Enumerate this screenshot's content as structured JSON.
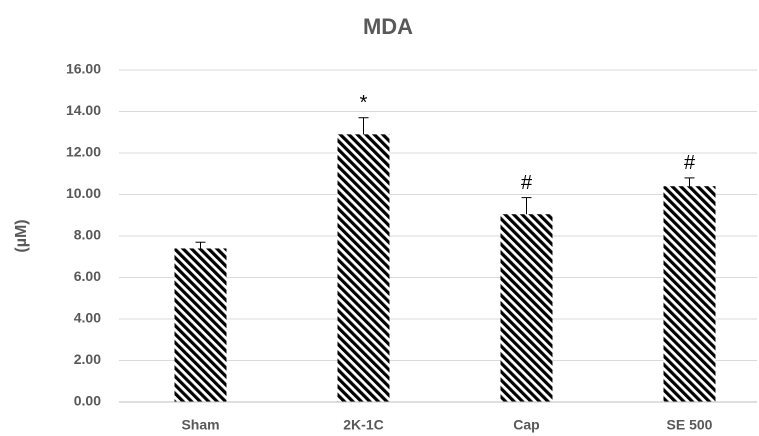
{
  "chart_data": {
    "type": "bar",
    "title": "MDA",
    "y_label": "(µM)",
    "categories": [
      "Sham",
      "2K-1C",
      "Cap",
      "SE 500"
    ],
    "values": [
      7.4,
      12.9,
      9.05,
      10.4
    ],
    "errors": [
      0.3,
      0.8,
      0.8,
      0.4
    ],
    "annotations": [
      null,
      "*",
      "#",
      "#"
    ],
    "color": "#000000",
    "ylim": [
      0,
      16
    ],
    "yticks": [
      {
        "value": 0,
        "label": "0.00"
      },
      {
        "value": 2,
        "label": "2.00"
      },
      {
        "value": 4,
        "label": "4.00"
      },
      {
        "value": 6,
        "label": "6.00"
      },
      {
        "value": 8,
        "label": "8.00"
      },
      {
        "value": 10,
        "label": "10.00"
      },
      {
        "value": 12,
        "label": "12.00"
      },
      {
        "value": 14,
        "label": "14.00"
      },
      {
        "value": 16,
        "label": "16.00"
      }
    ],
    "grid": true
  }
}
